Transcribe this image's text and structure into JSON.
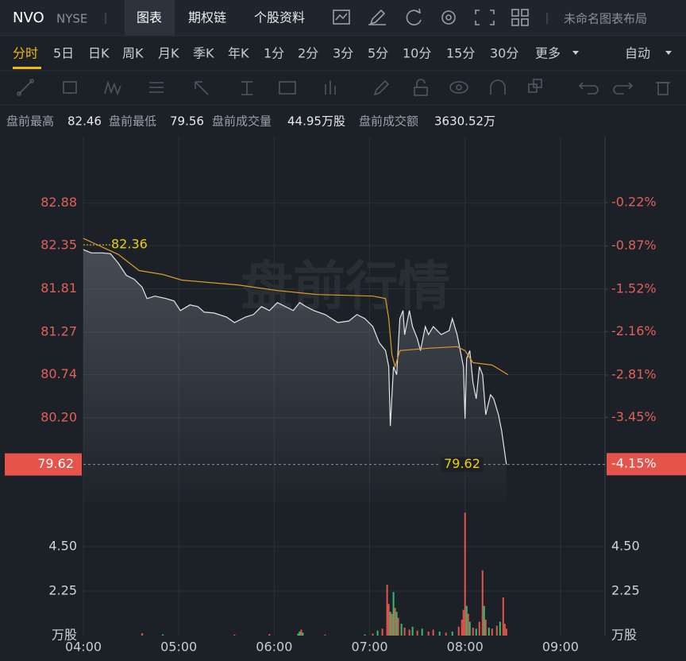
{
  "header": {
    "symbol": "NVO",
    "exchange": "NYSE",
    "tabs": [
      "图表",
      "期权链",
      "个股资料"
    ],
    "active_tab": 0,
    "layout_name": "未命名图表布局"
  },
  "periods": {
    "items": [
      "分时",
      "5日",
      "日K",
      "周K",
      "月K",
      "季K",
      "年K",
      "1分",
      "2分",
      "3分",
      "5分",
      "10分",
      "15分",
      "30分",
      "更多"
    ],
    "active": 0,
    "scale": "自动"
  },
  "info": [
    {
      "label": "盘前最高",
      "value": "82.46"
    },
    {
      "label": "盘前最低",
      "value": "79.56"
    },
    {
      "label": "盘前成交量",
      "value": "44.95万股"
    },
    {
      "label": "盘前成交额",
      "value": "3630.52万"
    }
  ],
  "chart_data": [
    {
      "type": "line",
      "watermark": "盘前行情",
      "xlim": [
        "04:00",
        "09:28"
      ],
      "ylim": [
        79.15,
        83.71
      ],
      "yticks": [
        82.88,
        82.35,
        81.81,
        81.27,
        80.74,
        {
          "value": 80.2,
          "label": "80.20"
        }
      ],
      "y2lim": [
        -4.72,
        0.77
      ],
      "y2ticks": [
        {
          "value": -0.22,
          "label": "-0.22%"
        },
        {
          "value": -0.87,
          "label": "-0.87%"
        },
        {
          "value": -1.52,
          "label": "-1.52%"
        },
        {
          "value": -2.16,
          "label": "-2.16%"
        },
        {
          "value": -2.81,
          "label": "-2.81%"
        },
        {
          "value": -3.45,
          "label": "-3.45%"
        }
      ],
      "grid": true,
      "start_label": 82.36,
      "last_price": 79.62,
      "last_change": {
        "value": -4.15,
        "label": "-4.15%"
      },
      "series": [
        {
          "color": "#e6e6e6",
          "x": [
            "04:00",
            "04:05",
            "04:12",
            "04:17",
            "04:22",
            "04:27",
            "04:32",
            "04:37",
            "04:40",
            "04:45",
            "04:52",
            "04:57",
            "05:01",
            "05:07",
            "05:12",
            "05:16",
            "05:22",
            "05:30",
            "05:35",
            "05:42",
            "05:47",
            "05:52",
            "05:57",
            "06:02",
            "06:07",
            "06:12",
            "06:16",
            "06:20",
            "06:25",
            "06:32",
            "06:40",
            "06:47",
            "06:52",
            "06:57",
            "07:02",
            "07:06",
            "07:10",
            "07:12",
            "07:13",
            "07:15",
            "07:17",
            "07:19",
            "07:21",
            "07:22",
            "07:25",
            "07:27",
            "07:30",
            "07:32",
            "07:35",
            "07:37",
            "07:40",
            "07:45",
            "07:50",
            "07:52",
            "07:55",
            "07:57",
            "07:59",
            "08:00",
            "08:01",
            "08:03",
            "08:05",
            "08:07",
            "08:09",
            "08:11",
            "08:13",
            "08:16",
            "08:18",
            "08:21",
            "08:23",
            "08:26"
          ],
          "values": [
            82.3,
            82.26,
            82.26,
            82.25,
            82.13,
            81.98,
            81.93,
            81.83,
            81.69,
            81.72,
            81.69,
            81.66,
            81.54,
            81.61,
            81.59,
            81.52,
            81.51,
            81.46,
            81.39,
            81.46,
            81.49,
            81.59,
            81.54,
            81.64,
            81.59,
            81.54,
            81.64,
            81.59,
            81.54,
            81.49,
            81.39,
            81.41,
            81.49,
            81.44,
            81.34,
            81.14,
            81.04,
            80.84,
            80.1,
            80.84,
            80.74,
            81.44,
            81.54,
            81.24,
            81.54,
            81.34,
            81.19,
            81.04,
            81.34,
            81.24,
            81.34,
            81.24,
            81.29,
            81.44,
            81.24,
            81.04,
            80.84,
            80.19,
            80.94,
            81.04,
            80.64,
            80.44,
            80.84,
            80.74,
            80.24,
            80.49,
            80.44,
            80.24,
            80.04,
            79.62
          ]
        },
        {
          "color": "#e09a2a",
          "x": [
            "04:00",
            "04:22",
            "04:35",
            "04:50",
            "05:02",
            "05:37",
            "06:02",
            "06:27",
            "07:02",
            "07:10",
            "07:12",
            "07:14",
            "07:16",
            "07:19",
            "07:37",
            "07:55",
            "08:00",
            "08:05",
            "08:17",
            "08:27"
          ],
          "values": [
            82.44,
            82.24,
            82.04,
            81.99,
            81.92,
            81.86,
            81.79,
            81.74,
            81.72,
            81.69,
            81.44,
            80.99,
            80.84,
            81.04,
            81.07,
            81.09,
            81.04,
            80.89,
            80.86,
            80.74
          ]
        }
      ]
    },
    {
      "type": "bar",
      "xlim": [
        "04:00",
        "09:28"
      ],
      "xticks": [
        "04:00",
        "05:00",
        "06:00",
        "07:00",
        "08:00",
        "09:00"
      ],
      "ylim": [
        0,
        6.75
      ],
      "yticks": [
        {
          "value": 4.5,
          "label": "4.50"
        },
        2.25
      ],
      "unit": "万股",
      "x": [
        "04:37",
        "04:50",
        "05:35",
        "05:57",
        "06:15",
        "06:16",
        "06:17",
        "06:18",
        "06:32",
        "06:57",
        "07:02",
        "07:05",
        "07:08",
        "07:11",
        "07:12",
        "07:13",
        "07:14",
        "07:15",
        "07:16",
        "07:17",
        "07:18",
        "07:20",
        "07:22",
        "07:25",
        "07:27",
        "07:30",
        "07:33",
        "07:37",
        "07:40",
        "07:44",
        "07:48",
        "07:52",
        "07:56",
        "07:58",
        "07:59",
        "08:00",
        "08:01",
        "08:02",
        "08:03",
        "08:05",
        "08:07",
        "08:09",
        "08:11",
        "08:12",
        "08:13",
        "08:15",
        "08:17",
        "08:20",
        "08:22",
        "08:24",
        "08:25",
        "08:26"
      ],
      "values": [
        0.12,
        0.06,
        0.05,
        0.08,
        0.1,
        0.2,
        0.3,
        0.15,
        0.05,
        0.06,
        0.1,
        0.25,
        0.35,
        2.57,
        1.6,
        1.2,
        1.1,
        2.2,
        1.4,
        1.2,
        0.9,
        0.6,
        0.4,
        0.3,
        0.45,
        0.25,
        0.35,
        0.2,
        0.3,
        0.2,
        0.15,
        0.2,
        0.45,
        0.8,
        1.3,
        6.22,
        1.5,
        1.1,
        0.7,
        0.4,
        0.35,
        0.7,
        3.3,
        1.5,
        0.8,
        0.4,
        0.35,
        0.5,
        0.7,
        1.93,
        0.6,
        0.35
      ],
      "colors": [
        "#e5534b",
        "#2fbf71",
        "#e5534b",
        "#e5534b",
        "#2fbf71",
        "#2fbf71",
        "#e5534b",
        "#2fbf71",
        "#e5534b",
        "#2fbf71",
        "#e5534b",
        "#2fbf71",
        "#e5534b",
        "#e5534b",
        "#e5534b",
        "#2fbf71",
        "#e5534b",
        "#2fbf71",
        "#e5534b",
        "#2fbf71",
        "#e5534b",
        "#2fbf71",
        "#e5534b",
        "#e5534b",
        "#2fbf71",
        "#e5534b",
        "#2fbf71",
        "#e5534b",
        "#e5534b",
        "#2fbf71",
        "#e5534b",
        "#2fbf71",
        "#e5534b",
        "#e5534b",
        "#e5534b",
        "#e5534b",
        "#2fbf71",
        "#e5534b",
        "#2fbf71",
        "#e5534b",
        "#2fbf71",
        "#e5534b",
        "#e5534b",
        "#2fbf71",
        "#e5534b",
        "#2fbf71",
        "#e5534b",
        "#e5534b",
        "#2fbf71",
        "#e5534b",
        "#e5534b",
        "#e5534b"
      ]
    }
  ]
}
